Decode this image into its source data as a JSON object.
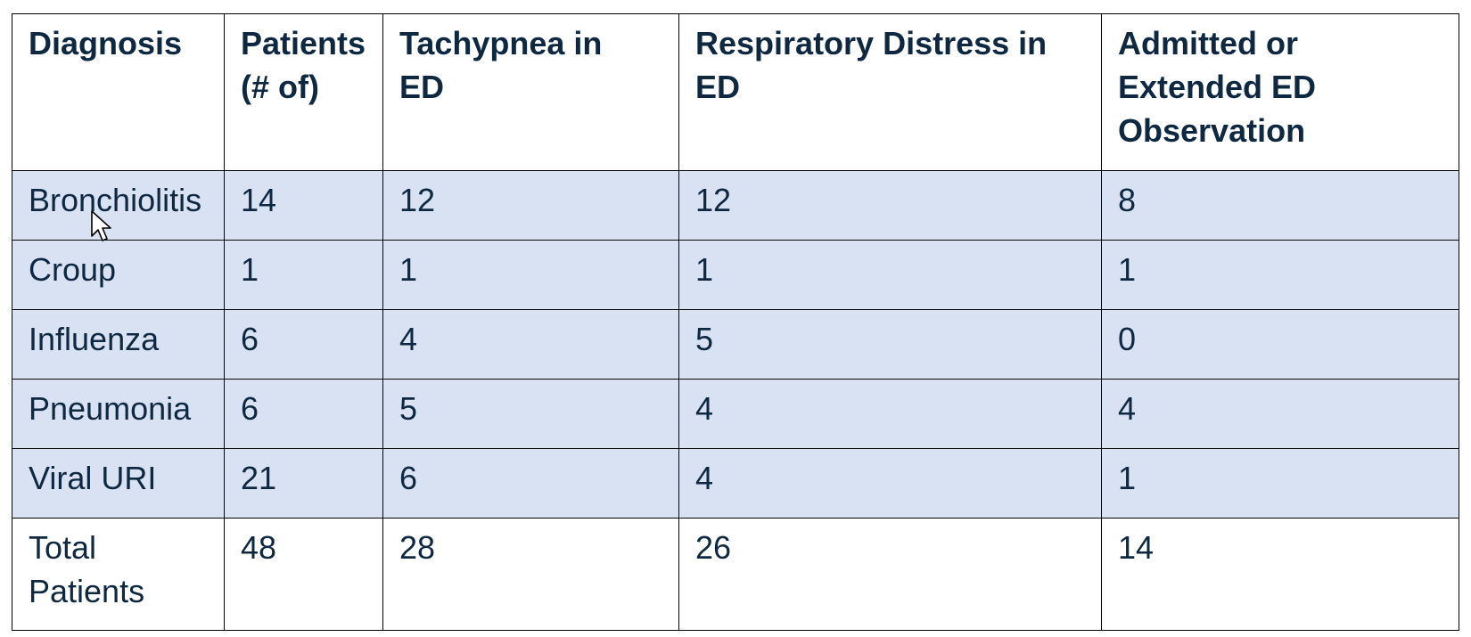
{
  "table": {
    "header": [
      [
        "Diagnosis"
      ],
      [
        "Patients",
        "(# of)"
      ],
      [
        "Tachypnea in",
        "ED"
      ],
      [
        "Respiratory Distress in",
        "ED"
      ],
      [
        "Admitted or",
        "Extended ED",
        "Observation"
      ]
    ],
    "rows": [
      [
        "Bronchiolitis",
        14,
        12,
        12,
        8
      ],
      [
        "Croup",
        1,
        1,
        1,
        1
      ],
      [
        "Influenza",
        6,
        4,
        5,
        0
      ],
      [
        "Pneumonia",
        6,
        5,
        4,
        4
      ],
      [
        "Viral URI",
        21,
        6,
        4,
        1
      ],
      [
        "Total Patients",
        48,
        28,
        26,
        14
      ]
    ]
  }
}
